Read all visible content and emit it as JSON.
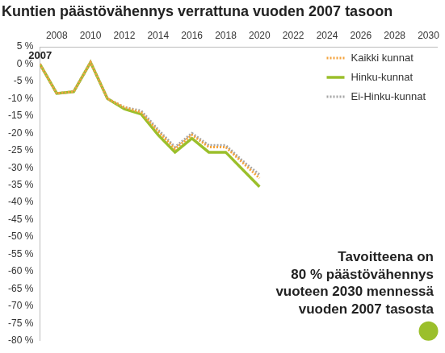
{
  "chart_data": {
    "type": "line",
    "title": "Kuntien päästövähennys verrattuna vuoden 2007 tasoon",
    "x": [
      2007,
      2008,
      2009,
      2010,
      2011,
      2012,
      2013,
      2014,
      2015,
      2016,
      2017,
      2018,
      2019,
      2020
    ],
    "series": [
      {
        "name": "Kaikki kunnat",
        "color": "#f5a33c",
        "line_style": "dotted",
        "marker": "none",
        "values": [
          0,
          -8.5,
          -8,
          0.5,
          -10,
          -12.5,
          -14,
          -19.5,
          -24.5,
          -20.5,
          -24,
          -24,
          -28.5,
          -33
        ]
      },
      {
        "name": "Hinku-kunnat",
        "color": "#9bbf2b",
        "line_style": "solid",
        "marker": "none",
        "values": [
          0,
          -8.5,
          -8,
          0.5,
          -10,
          -13,
          -14.5,
          -20.5,
          -25.5,
          -21.5,
          -25.5,
          -25.5,
          -30.5,
          -35.5
        ]
      },
      {
        "name": "Ei-Hinku-kunnat",
        "color": "#a6a6a6",
        "line_style": "dotted",
        "marker": "none",
        "values": [
          0,
          -8.5,
          -8,
          0.5,
          -10,
          -12.5,
          -13.5,
          -19,
          -24,
          -20,
          -23.5,
          -23.5,
          -28,
          -32
        ]
      }
    ],
    "xlim": [
      2007,
      2030.5
    ],
    "xticks": [
      2008,
      2010,
      2012,
      2014,
      2016,
      2018,
      2020,
      2022,
      2024,
      2026,
      2028,
      2030
    ],
    "ylim": [
      -80,
      5
    ],
    "yticks": [
      {
        "value": 5,
        "label": "5 %"
      },
      {
        "value": 0,
        "label": "0 %"
      },
      {
        "value": -5,
        "label": "-5 %"
      },
      {
        "value": -10,
        "label": "-10 %"
      },
      {
        "value": -15,
        "label": "-15 %"
      },
      {
        "value": -20,
        "label": "-20 %"
      },
      {
        "value": -25,
        "label": "-25 %"
      },
      {
        "value": -30,
        "label": "-30 %"
      },
      {
        "value": -35,
        "label": "-35 %"
      },
      {
        "value": -40,
        "label": "-40 %"
      },
      {
        "value": -45,
        "label": "-45 %"
      },
      {
        "value": -50,
        "label": "-50 %"
      },
      {
        "value": -55,
        "label": "-55 %"
      },
      {
        "value": -60,
        "label": "-60 %"
      },
      {
        "value": -65,
        "label": "-65 %"
      },
      {
        "value": -70,
        "label": "-70 %"
      },
      {
        "value": -75,
        "label": "-75 %"
      },
      {
        "value": -80,
        "label": "-80 %"
      }
    ],
    "annotations": [
      {
        "text": [
          "2007"
        ],
        "x": 2007,
        "y": 0
      },
      {
        "text": [
          "Tavoitteena on",
          "80 % päästövähennys",
          "vuoteen 2030 mennessä",
          "vuoden 2007 tasosta"
        ],
        "x": 2030,
        "y": -80,
        "color": "#9bbf2b"
      }
    ],
    "grid": false,
    "legend": "top-right"
  }
}
